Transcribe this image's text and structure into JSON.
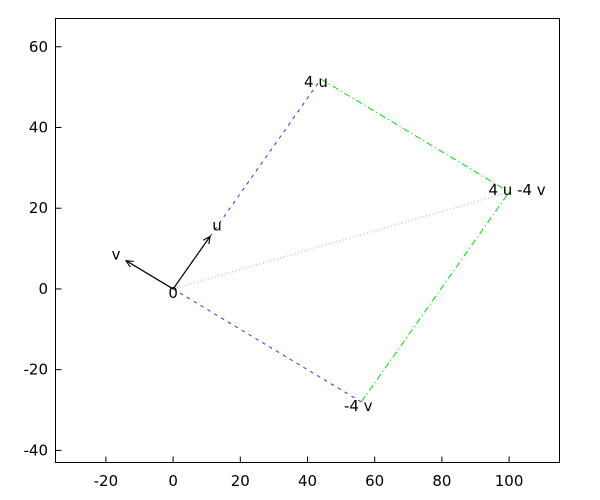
{
  "figure": {
    "background": "#ffffff",
    "frame_color": "#000000"
  },
  "chart_data": {
    "type": "line",
    "title": "",
    "xlabel": "",
    "ylabel": "",
    "xlim": [
      -35,
      115
    ],
    "ylim": [
      -43,
      67
    ],
    "grid": false,
    "legend": false,
    "xticks": [
      -20,
      0,
      20,
      40,
      60,
      80,
      100
    ],
    "xtick_labels": [
      "-20",
      "0",
      "20",
      "40",
      "60",
      "80",
      "100"
    ],
    "yticks": [
      60,
      40,
      20,
      0,
      -20,
      -40
    ],
    "ytick_labels": [
      "60",
      "40",
      "20",
      "0",
      "-20",
      "-40"
    ],
    "points": [
      {
        "label": "0",
        "x": 0,
        "y": 0
      },
      {
        "label": "u",
        "x": 11,
        "y": 13
      },
      {
        "label": "v",
        "x": -14,
        "y": 7
      },
      {
        "label": "4 u",
        "x": 44,
        "y": 52
      },
      {
        "label": "-4 v",
        "x": 56,
        "y": -28
      },
      {
        "label": "4 u -4 v",
        "x": 100,
        "y": 24
      }
    ],
    "series": [
      {
        "name": "origin-to-sum-diagonal",
        "style": "dotted",
        "color": "#ee8888",
        "from": [
          0,
          0
        ],
        "to": [
          100,
          24
        ]
      },
      {
        "name": "origin-to-4u",
        "style": "dashed",
        "color": "#3030f0",
        "from": [
          0,
          0
        ],
        "to": [
          44,
          52
        ]
      },
      {
        "name": "origin-to-minus4v",
        "style": "dashed",
        "color": "#3030f0",
        "from": [
          0,
          0
        ],
        "to": [
          56,
          -28
        ]
      },
      {
        "name": "4u-to-sum",
        "style": "dashdot",
        "color": "#00dd00",
        "from": [
          44,
          52
        ],
        "to": [
          100,
          24
        ]
      },
      {
        "name": "minus4v-to-sum",
        "style": "dashdot",
        "color": "#00dd00",
        "from": [
          56,
          -28
        ],
        "to": [
          100,
          24
        ]
      },
      {
        "name": "vector-u",
        "style": "solid-arrow",
        "color": "#000000",
        "from": [
          0,
          0
        ],
        "to": [
          11,
          13
        ]
      },
      {
        "name": "vector-v",
        "style": "solid-arrow",
        "color": "#000000",
        "from": [
          0,
          0
        ],
        "to": [
          -14,
          7
        ]
      }
    ]
  }
}
